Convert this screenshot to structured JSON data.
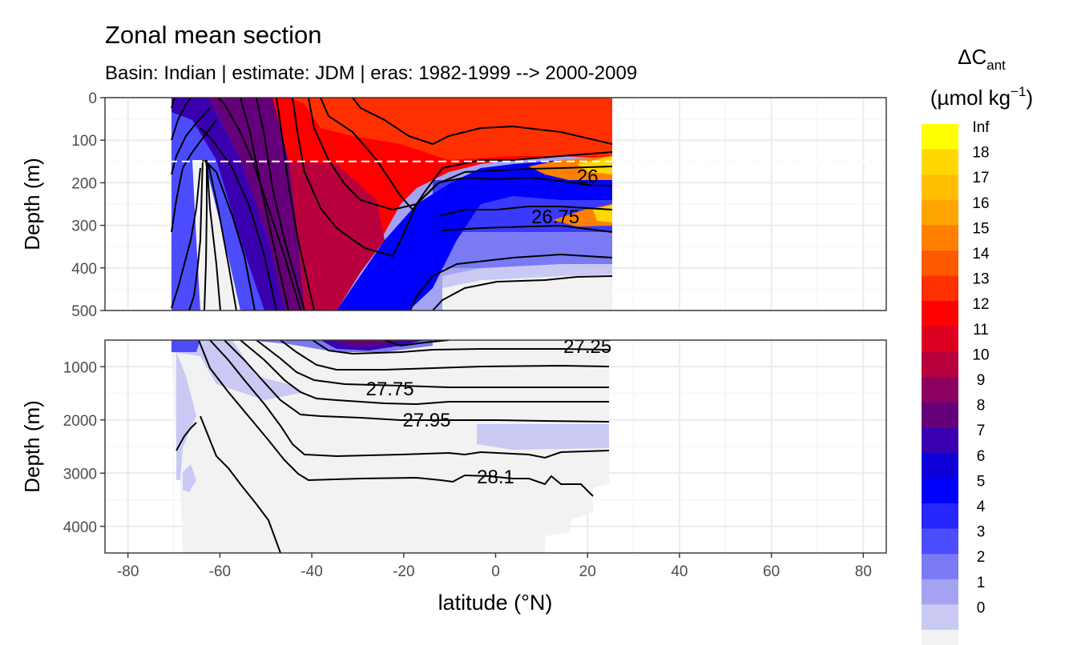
{
  "chart_data": {
    "type": "heatmap",
    "title": "Zonal mean section",
    "subtitle": "Basin: Indian | estimate: JDM  | eras: 1982-1999 --> 2000-2009",
    "xlabel": "latitude (°N)",
    "ylabel": "Depth (m)",
    "x_ticks": [
      -80,
      -60,
      -40,
      -20,
      0,
      20,
      40,
      60,
      80
    ],
    "xlim": [
      -85,
      85
    ],
    "grid": true,
    "panels": [
      {
        "name": "upper",
        "ylim": [
          500,
          0
        ],
        "y_ticks": [
          0,
          100,
          200,
          300,
          400,
          500
        ]
      },
      {
        "name": "lower",
        "ylim": [
          4500,
          500
        ],
        "y_ticks": [
          1000,
          2000,
          3000,
          4000
        ]
      }
    ],
    "reference_line_depth": 150,
    "legend": {
      "title": "ΔC",
      "title_sub": "ant",
      "unit": "(µmol kg",
      "unit_sup": "−1",
      "unit_end": ")",
      "placement": "right",
      "labels": [
        "Inf",
        "18",
        "17",
        "16",
        "15",
        "14",
        "13",
        "12",
        "11",
        "10",
        "9",
        "8",
        "7",
        "6",
        "5",
        "4",
        "3",
        "2",
        "1",
        "0"
      ],
      "colors": [
        "#ffff00",
        "#ffd700",
        "#ffbf00",
        "#ffa500",
        "#ff8000",
        "#ff5a00",
        "#ff3000",
        "#ff0000",
        "#dc0020",
        "#b8003c",
        "#8c0060",
        "#66007a",
        "#3a00b0",
        "#0f00d8",
        "#0000ff",
        "#2626ff",
        "#4c4cff",
        "#7a7af5",
        "#a3a3f2",
        "#c9c9f4",
        "#f2f2f2"
      ]
    },
    "contour_labels": [
      {
        "text": "26",
        "lat": 20,
        "depth": 185
      },
      {
        "text": "26.75",
        "lat": 13,
        "depth": 280
      },
      {
        "text": "27.25",
        "lat": 20,
        "depth": 620
      },
      {
        "text": "27.75",
        "lat": -23,
        "depth": 1420
      },
      {
        "text": "27.95",
        "lat": -15,
        "depth": 2000
      },
      {
        "text": "28.1",
        "lat": 0,
        "depth": 3070
      }
    ]
  }
}
